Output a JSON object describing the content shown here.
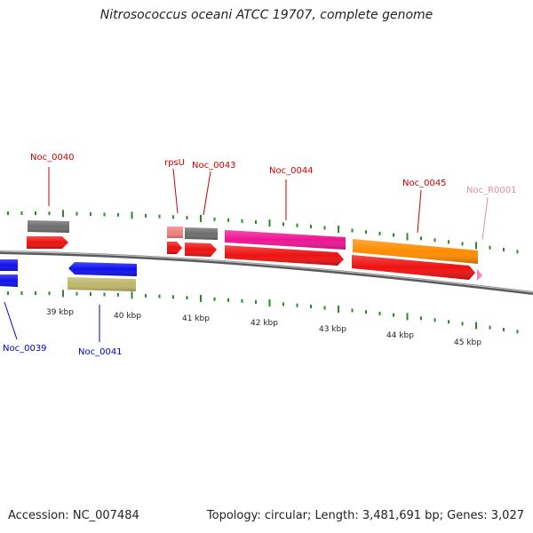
{
  "title": "Nitrosococcus oceani ATCC 19707, complete genome",
  "footer": {
    "accession": "Accession: NC_007484",
    "topology": "Topology: circular; Length: 3,481,691 bp; Genes: 3,027"
  },
  "colors": {
    "backbone": "#8a8a8a",
    "tick": "#2a8a2a",
    "label_forward": "#cc0000",
    "label_reverse": "#0000cc",
    "label_rna": "#e08aaa",
    "cds": "#ee1111",
    "blue": "#1010ee",
    "grey": "#6e6e6e",
    "khaki": "#bdb76b",
    "magenta": "#ee1493",
    "orange": "#ff8c00",
    "pink": "#f08080",
    "rna": "#ff80b0"
  },
  "kbp_ticks": [
    "39 kbp",
    "40 kbp",
    "41 kbp",
    "42 kbp",
    "43 kbp",
    "44 kbp",
    "45 kbp"
  ],
  "gene_labels": [
    {
      "name": "Noc_0040",
      "strand": "forward"
    },
    {
      "name": "rpsU",
      "strand": "forward"
    },
    {
      "name": "Noc_0043",
      "strand": "forward"
    },
    {
      "name": "Noc_0044",
      "strand": "forward"
    },
    {
      "name": "Noc_0045",
      "strand": "forward"
    },
    {
      "name": "Noc_R0001",
      "strand": "rna"
    },
    {
      "name": "Noc_0039",
      "strand": "reverse"
    },
    {
      "name": "Noc_0041",
      "strand": "reverse"
    }
  ]
}
